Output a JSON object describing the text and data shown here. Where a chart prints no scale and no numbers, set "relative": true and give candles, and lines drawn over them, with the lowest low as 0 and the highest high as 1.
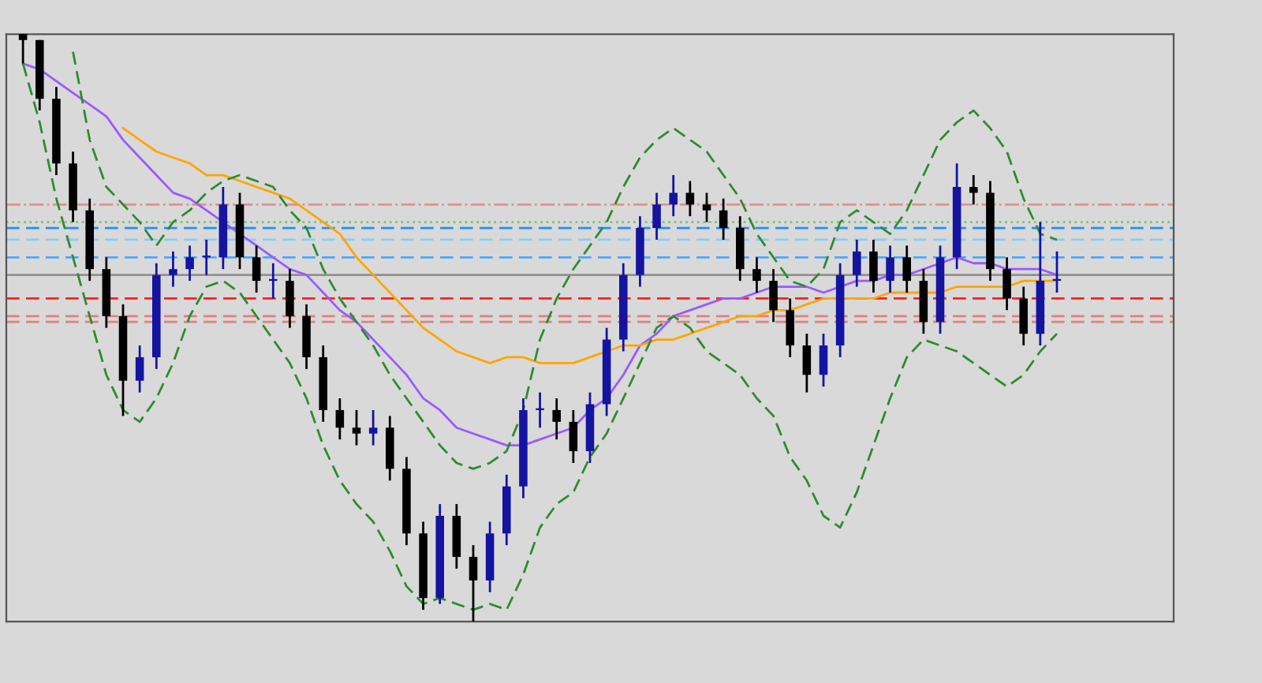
{
  "chart_data": {
    "type": "candlestick",
    "relative": true,
    "grid": false,
    "categories": [
      null,
      null,
      null,
      null,
      null,
      null,
      null,
      null,
      null,
      null,
      null,
      null,
      null,
      null,
      null,
      null,
      null,
      null,
      null,
      null,
      null,
      null,
      null,
      null,
      null,
      null,
      null,
      null,
      null,
      null,
      null,
      null,
      null,
      null,
      null,
      null,
      null,
      null,
      null,
      null,
      null,
      null,
      null,
      null,
      null,
      null,
      null,
      null,
      null,
      null,
      null,
      null,
      null,
      null,
      null,
      null,
      null,
      null,
      null,
      null,
      null,
      null,
      null
    ],
    "ohlc": [
      [
        1.0,
        1.0,
        0.95,
        0.99
      ],
      [
        0.99,
        0.99,
        0.87,
        0.89
      ],
      [
        0.89,
        0.91,
        0.76,
        0.78
      ],
      [
        0.78,
        0.8,
        0.68,
        0.7
      ],
      [
        0.7,
        0.72,
        0.58,
        0.6
      ],
      [
        0.6,
        0.62,
        0.5,
        0.52
      ],
      [
        0.52,
        0.54,
        0.35,
        0.41
      ],
      [
        0.41,
        0.47,
        0.39,
        0.45
      ],
      [
        0.45,
        0.61,
        0.43,
        0.59
      ],
      [
        0.59,
        0.63,
        0.57,
        0.6
      ],
      [
        0.6,
        0.64,
        0.58,
        0.62
      ],
      [
        0.62,
        0.65,
        0.59,
        0.62
      ],
      [
        0.62,
        0.74,
        0.6,
        0.71
      ],
      [
        0.71,
        0.73,
        0.6,
        0.62
      ],
      [
        0.62,
        0.64,
        0.56,
        0.58
      ],
      [
        0.58,
        0.61,
        0.55,
        0.58
      ],
      [
        0.58,
        0.6,
        0.5,
        0.52
      ],
      [
        0.52,
        0.54,
        0.43,
        0.45
      ],
      [
        0.45,
        0.47,
        0.34,
        0.36
      ],
      [
        0.36,
        0.38,
        0.31,
        0.33
      ],
      [
        0.33,
        0.36,
        0.3,
        0.32
      ],
      [
        0.32,
        0.36,
        0.3,
        0.33
      ],
      [
        0.33,
        0.35,
        0.24,
        0.26
      ],
      [
        0.26,
        0.28,
        0.13,
        0.15
      ],
      [
        0.15,
        0.17,
        0.02,
        0.04
      ],
      [
        0.04,
        0.2,
        0.03,
        0.18
      ],
      [
        0.18,
        0.2,
        0.09,
        0.11
      ],
      [
        0.11,
        0.13,
        0.0,
        0.07
      ],
      [
        0.07,
        0.17,
        0.05,
        0.15
      ],
      [
        0.15,
        0.25,
        0.13,
        0.23
      ],
      [
        0.23,
        0.38,
        0.21,
        0.36
      ],
      [
        0.36,
        0.39,
        0.33,
        0.36
      ],
      [
        0.36,
        0.38,
        0.31,
        0.34
      ],
      [
        0.34,
        0.36,
        0.27,
        0.29
      ],
      [
        0.29,
        0.39,
        0.27,
        0.37
      ],
      [
        0.37,
        0.5,
        0.35,
        0.48
      ],
      [
        0.48,
        0.61,
        0.46,
        0.59
      ],
      [
        0.59,
        0.69,
        0.57,
        0.67
      ],
      [
        0.67,
        0.73,
        0.65,
        0.71
      ],
      [
        0.71,
        0.76,
        0.69,
        0.73
      ],
      [
        0.73,
        0.75,
        0.69,
        0.71
      ],
      [
        0.71,
        0.73,
        0.68,
        0.7
      ],
      [
        0.7,
        0.72,
        0.65,
        0.67
      ],
      [
        0.67,
        0.69,
        0.58,
        0.6
      ],
      [
        0.6,
        0.62,
        0.56,
        0.58
      ],
      [
        0.58,
        0.6,
        0.51,
        0.53
      ],
      [
        0.53,
        0.55,
        0.45,
        0.47
      ],
      [
        0.47,
        0.49,
        0.39,
        0.42
      ],
      [
        0.42,
        0.49,
        0.4,
        0.47
      ],
      [
        0.47,
        0.61,
        0.45,
        0.59
      ],
      [
        0.59,
        0.65,
        0.57,
        0.63
      ],
      [
        0.63,
        0.65,
        0.56,
        0.58
      ],
      [
        0.58,
        0.64,
        0.56,
        0.62
      ],
      [
        0.62,
        0.64,
        0.56,
        0.58
      ],
      [
        0.58,
        0.6,
        0.49,
        0.51
      ],
      [
        0.51,
        0.64,
        0.49,
        0.62
      ],
      [
        0.62,
        0.78,
        0.6,
        0.74
      ],
      [
        0.74,
        0.76,
        0.71,
        0.73
      ],
      [
        0.73,
        0.75,
        0.58,
        0.6
      ],
      [
        0.6,
        0.62,
        0.53,
        0.55
      ],
      [
        0.55,
        0.57,
        0.47,
        0.49
      ],
      [
        0.49,
        0.68,
        0.47,
        0.58
      ],
      [
        0.58,
        0.63,
        0.56,
        0.58
      ]
    ],
    "series": [
      {
        "type": "line",
        "color": "#9b59ff",
        "line_style": "solid",
        "values": [
          0.95,
          0.94,
          0.92,
          0.9,
          0.88,
          0.86,
          0.82,
          0.79,
          0.76,
          0.73,
          0.72,
          0.7,
          0.68,
          0.66,
          0.64,
          0.62,
          0.6,
          0.59,
          0.56,
          0.53,
          0.51,
          0.48,
          0.45,
          0.42,
          0.38,
          0.36,
          0.33,
          0.32,
          0.31,
          0.3,
          0.3,
          0.31,
          0.32,
          0.33,
          0.36,
          0.38,
          0.42,
          0.47,
          0.49,
          0.52,
          0.53,
          0.54,
          0.55,
          0.55,
          0.56,
          0.57,
          0.57,
          0.57,
          0.56,
          0.57,
          0.58,
          0.58,
          0.59,
          0.59,
          0.6,
          0.61,
          0.62,
          0.61,
          0.61,
          0.6,
          0.6,
          0.6,
          0.59
        ]
      },
      {
        "type": "line",
        "color": "#ffa500",
        "line_style": "solid",
        "values": [
          null,
          null,
          null,
          null,
          null,
          null,
          0.84,
          0.82,
          0.8,
          0.79,
          0.78,
          0.76,
          0.76,
          0.75,
          0.74,
          0.73,
          0.72,
          0.7,
          0.68,
          0.66,
          0.62,
          0.59,
          0.56,
          0.53,
          0.5,
          0.48,
          0.46,
          0.45,
          0.44,
          0.45,
          0.45,
          0.44,
          0.44,
          0.44,
          0.45,
          0.46,
          0.47,
          0.47,
          0.48,
          0.48,
          0.49,
          0.5,
          0.51,
          0.52,
          0.52,
          0.53,
          0.53,
          0.54,
          0.55,
          0.55,
          0.55,
          0.55,
          0.56,
          0.56,
          0.56,
          0.56,
          0.57,
          0.57,
          0.57,
          0.57,
          0.58,
          0.58,
          0.58
        ]
      },
      {
        "type": "line",
        "color": "#2e8b2e",
        "line_style": "dashed",
        "values": [
          null,
          null,
          null,
          0.97,
          0.82,
          0.74,
          0.71,
          0.68,
          0.64,
          0.68,
          0.7,
          0.73,
          0.75,
          0.76,
          0.75,
          0.74,
          0.7,
          0.67,
          0.6,
          0.55,
          0.51,
          0.47,
          0.42,
          0.38,
          0.34,
          0.3,
          0.27,
          0.26,
          0.27,
          0.29,
          0.36,
          0.48,
          0.55,
          0.6,
          0.64,
          0.68,
          0.74,
          0.79,
          0.82,
          0.84,
          0.82,
          0.8,
          0.76,
          0.72,
          0.66,
          0.62,
          0.58,
          0.57,
          0.6,
          0.68,
          0.7,
          0.68,
          0.66,
          0.7,
          0.76,
          0.82,
          0.85,
          0.87,
          0.84,
          0.8,
          0.72,
          0.66,
          0.65
        ]
      },
      {
        "type": "line",
        "color": "#2e8b2e",
        "line_style": "dashed",
        "values": [
          0.95,
          0.85,
          0.72,
          0.62,
          0.52,
          0.42,
          0.36,
          0.34,
          0.38,
          0.44,
          0.52,
          0.57,
          0.58,
          0.56,
          0.52,
          0.48,
          0.44,
          0.38,
          0.3,
          0.24,
          0.2,
          0.17,
          0.12,
          0.06,
          0.03,
          0.04,
          0.03,
          0.02,
          0.03,
          0.02,
          0.08,
          0.16,
          0.2,
          0.22,
          0.28,
          0.32,
          0.38,
          0.44,
          0.5,
          0.52,
          0.5,
          0.46,
          0.44,
          0.42,
          0.38,
          0.35,
          0.28,
          0.24,
          0.18,
          0.16,
          0.22,
          0.3,
          0.38,
          0.45,
          0.48,
          0.47,
          0.46,
          0.44,
          0.42,
          0.4,
          0.42,
          0.46,
          0.49
        ]
      }
    ],
    "ref_lines": [
      {
        "axis": "y",
        "value": 0.71,
        "color": "#e09090",
        "line_style": "dashdot"
      },
      {
        "axis": "y",
        "value": 0.68,
        "color": "#80c080",
        "line_style": "dotted"
      },
      {
        "axis": "y",
        "value": 0.67,
        "color": "#1e90ff",
        "line_style": "dashed"
      },
      {
        "axis": "y",
        "value": 0.65,
        "color": "#87cefa",
        "line_style": "dashed"
      },
      {
        "axis": "y",
        "value": 0.62,
        "color": "#4da6ff",
        "line_style": "dashed"
      },
      {
        "axis": "y",
        "value": 0.59,
        "color": "#909090",
        "line_style": "solid"
      },
      {
        "axis": "y",
        "value": 0.55,
        "color": "#ff2020",
        "line_style": "dashed"
      },
      {
        "axis": "y",
        "value": 0.52,
        "color": "#e08080",
        "line_style": "dashed"
      },
      {
        "axis": "y",
        "value": 0.51,
        "color": "#e08080",
        "line_style": "dashed"
      }
    ]
  }
}
